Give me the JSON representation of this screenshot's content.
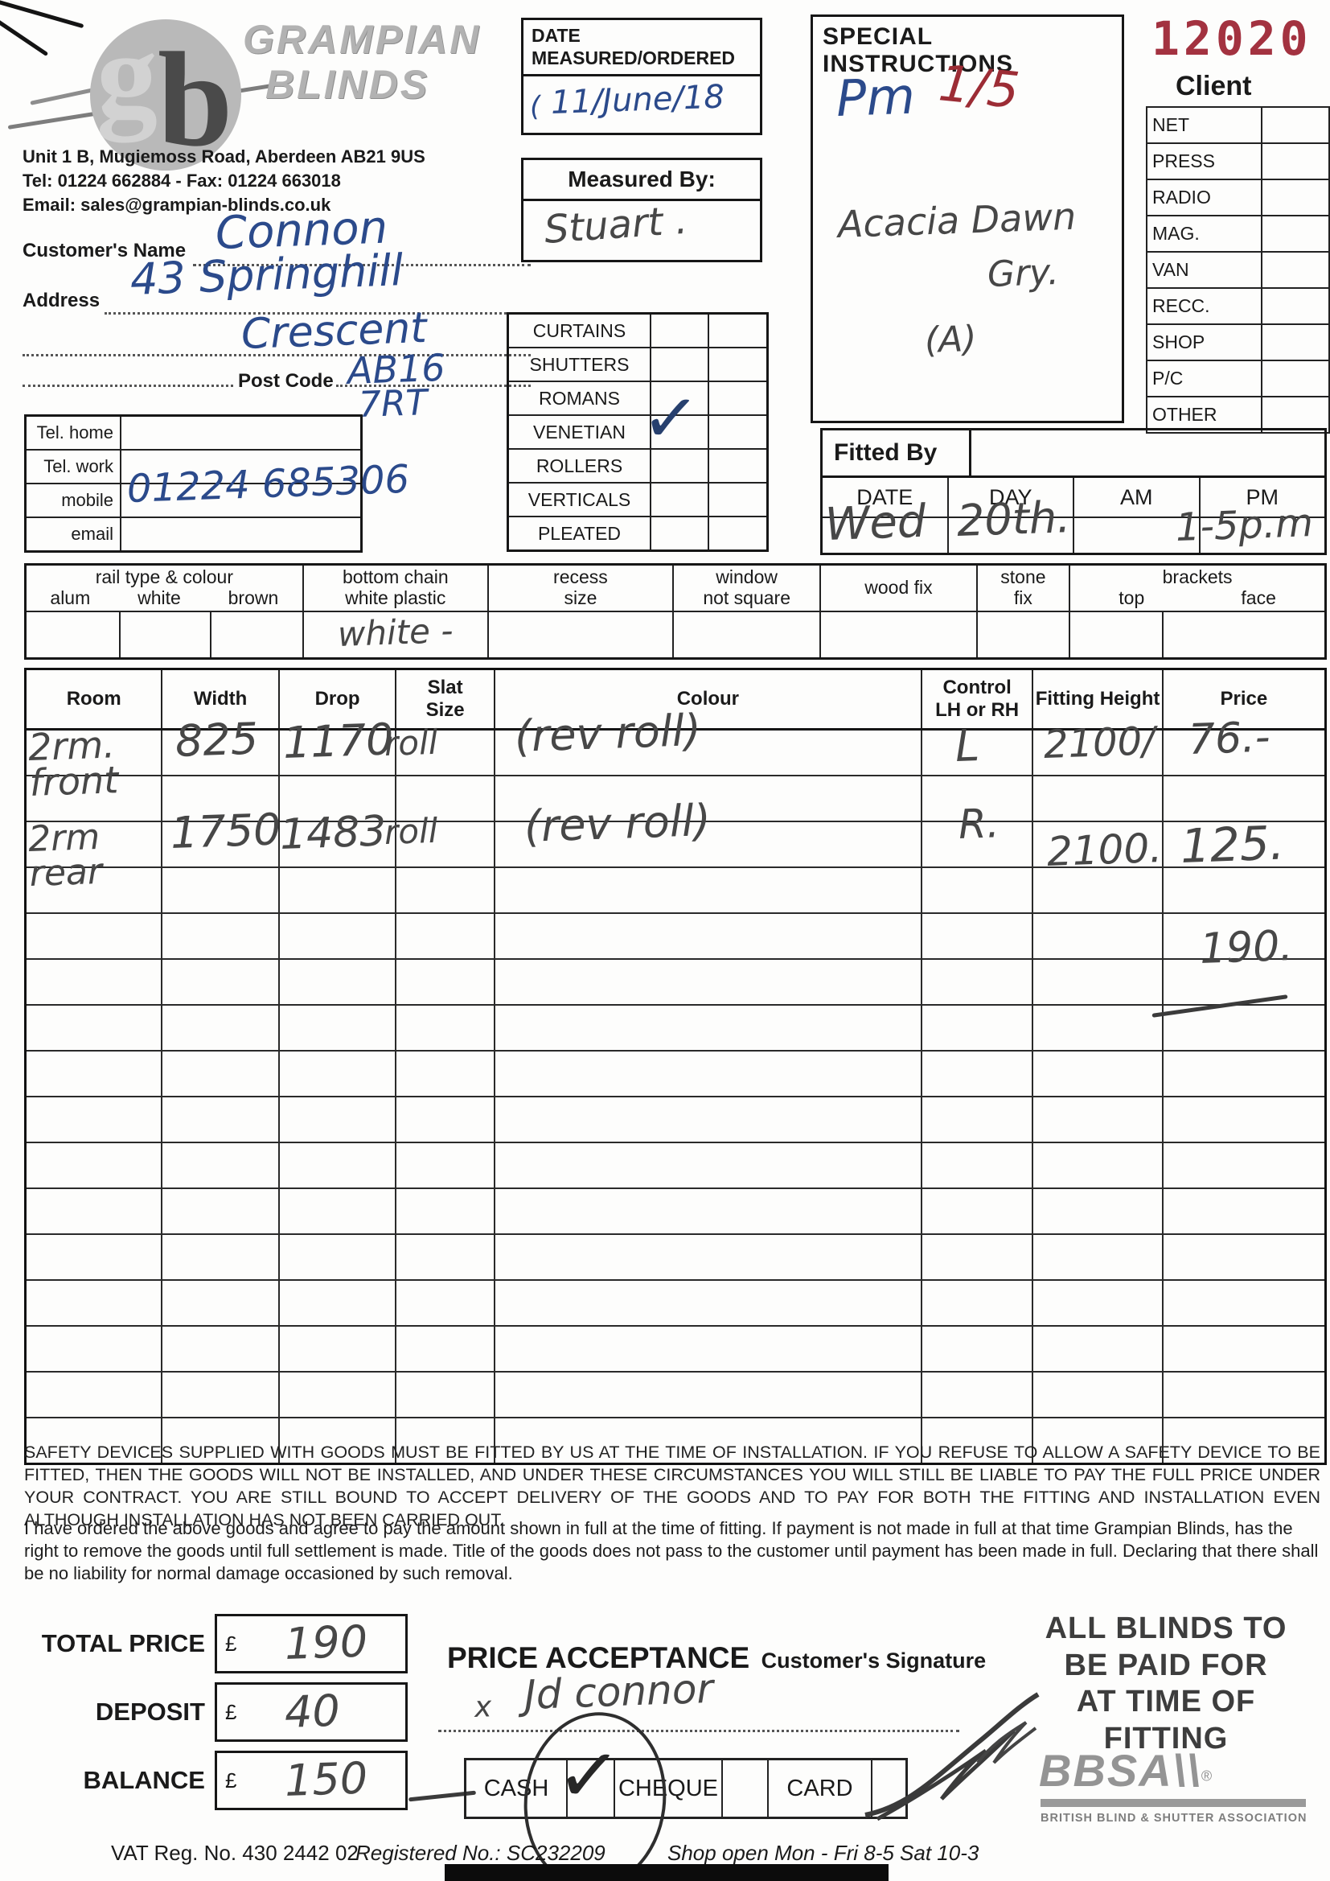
{
  "company": {
    "monogram_g": "g",
    "monogram_b": "b",
    "name_line1": "GRAMPIAN",
    "name_line2": "BLINDS",
    "address": "Unit 1 B, Mugiemoss Road, Aberdeen AB21 9US",
    "tel_fax": "Tel: 01224 662884   -   Fax: 01224 663018",
    "email": "Email: sales@grampian-blinds.co.uk"
  },
  "order_number": "12020",
  "date_box": {
    "label_line1": "DATE",
    "label_line2": "MEASURED/ORDERED",
    "stray_mark": "(",
    "value": "11/June/18"
  },
  "measured_by": {
    "label": "Measured By:",
    "value": "Stuart ."
  },
  "special_instructions": {
    "title": "SPECIAL INSTRUCTIONS",
    "entry_pen": "Pm",
    "entry_red": "1/5",
    "note_line1": "Acacia Dawn",
    "note_line2": "Gry.",
    "note_line3": "(A)"
  },
  "client_panel": {
    "title": "Client",
    "items": [
      "NET",
      "PRESS",
      "RADIO",
      "MAG.",
      "VAN",
      "RECC.",
      "SHOP",
      "P/C",
      "OTHER"
    ]
  },
  "customer": {
    "name_label": "Customer's Name",
    "name_value": "Connon",
    "address_label": "Address",
    "address_value_line1": "43 Springhill",
    "address_value_line2": "Crescent",
    "postcode_label": "Post Code",
    "postcode_value_line1": "AB16",
    "postcode_value_line2": "7RT"
  },
  "phones": {
    "labels": [
      "Tel. home",
      "Tel. work",
      "mobile",
      "email"
    ],
    "mobile_value": "01224 685306"
  },
  "products": {
    "items": [
      "CURTAINS",
      "SHUTTERS",
      "ROMANS",
      "VENETIAN",
      "ROLLERS",
      "VERTICALS",
      "PLEATED"
    ],
    "checked_item": "ROLLERS",
    "check_glyph": "✓"
  },
  "fitted_by": {
    "title": "Fitted By",
    "columns": [
      "DATE",
      "DAY",
      "AM",
      "PM"
    ],
    "date_value": "Wed",
    "day_value": "20th.",
    "am_value": "",
    "pm_value": "1-5p.m"
  },
  "rail_row": {
    "rail_group_title": "rail type & colour",
    "rail_options": [
      "alum",
      "white",
      "brown"
    ],
    "bottom_chain_line1": "bottom chain",
    "bottom_chain_line2": "white plastic",
    "bottom_chain_value": "white -",
    "recess_line1": "recess",
    "recess_line2": "size",
    "window_line1": "window",
    "window_line2": "not square",
    "wood_fix": "wood fix",
    "stone_line1": "stone",
    "stone_line2": "fix",
    "brackets_title": "brackets",
    "brackets_options": [
      "top",
      "face"
    ]
  },
  "order_table": {
    "headers": [
      "Room",
      "Width",
      "Drop",
      "Slat\nSize",
      "Colour",
      "Control\nLH or RH",
      "Fitting Height",
      "Price"
    ],
    "rows": [
      {
        "room": "2rm.\nfront",
        "width": "825",
        "drop": "1170",
        "slat": "roll",
        "colour": "(rev roll)",
        "control": "L",
        "fitting_height": "2100/",
        "price": "76.-"
      },
      {
        "room": "2rm\nrear",
        "width": "1750",
        "drop": "1483",
        "slat": "roll",
        "colour": "(rev roll)",
        "control": "R.",
        "fitting_height": "2100.",
        "price": "125."
      }
    ],
    "running_total": "190."
  },
  "terms": {
    "para1": "SAFETY DEVICES SUPPLIED WITH GOODS MUST BE FITTED BY US AT THE TIME OF INSTALLATION. IF YOU REFUSE TO ALLOW A SAFETY DEVICE TO BE FITTED, THEN THE GOODS WILL NOT BE INSTALLED, AND UNDER THESE CIRCUMSTANCES YOU WILL STILL BE LIABLE TO PAY THE FULL PRICE UNDER YOUR CONTRACT. YOU ARE STILL BOUND TO ACCEPT DELIVERY OF THE GOODS AND TO PAY FOR BOTH THE FITTING AND INSTALLATION EVEN ALTHOUGH INSTALLATION HAS NOT BEEN CARRIED OUT.",
    "para2": "I have ordered the above goods and agree to pay the amount shown in full at the time of fitting. If payment is not made in full at that time Grampian Blinds, has the right to remove the goods until full settlement is made. Title of the goods does not pass to the customer until payment has been made in full. Declaring that there shall be no liability for normal damage occasioned by such removal."
  },
  "totals": {
    "rows": [
      {
        "label": "TOTAL PRICE",
        "currency": "£",
        "value": "190"
      },
      {
        "label": "DEPOSIT",
        "currency": "£",
        "value": "40"
      },
      {
        "label": "BALANCE",
        "currency": "£",
        "value": "150"
      }
    ]
  },
  "acceptance": {
    "title": "PRICE ACCEPTANCE",
    "subtitle": "Customer's Signature",
    "signature_mark": "x",
    "signature": "Jd connor"
  },
  "payment": {
    "methods": [
      "CASH",
      "CHEQUE",
      "CARD"
    ],
    "selected": "CASH",
    "check_glyph": "✓"
  },
  "paid_notice": {
    "lines": [
      "ALL BLINDS TO",
      "BE PAID FOR",
      "AT TIME OF",
      "FITTING"
    ]
  },
  "bbsa": {
    "wordmark": "BBSA",
    "slashes": "\\\\",
    "registered": "®",
    "caption": "BRITISH BLIND & SHUTTER ASSOCIATION"
  },
  "footer": {
    "vat": "VAT Reg. No. 430 2442 02",
    "registered": "Registered No.: SC232209",
    "hours": "Shop open Mon - Fri 8-5  Sat 10-3"
  }
}
